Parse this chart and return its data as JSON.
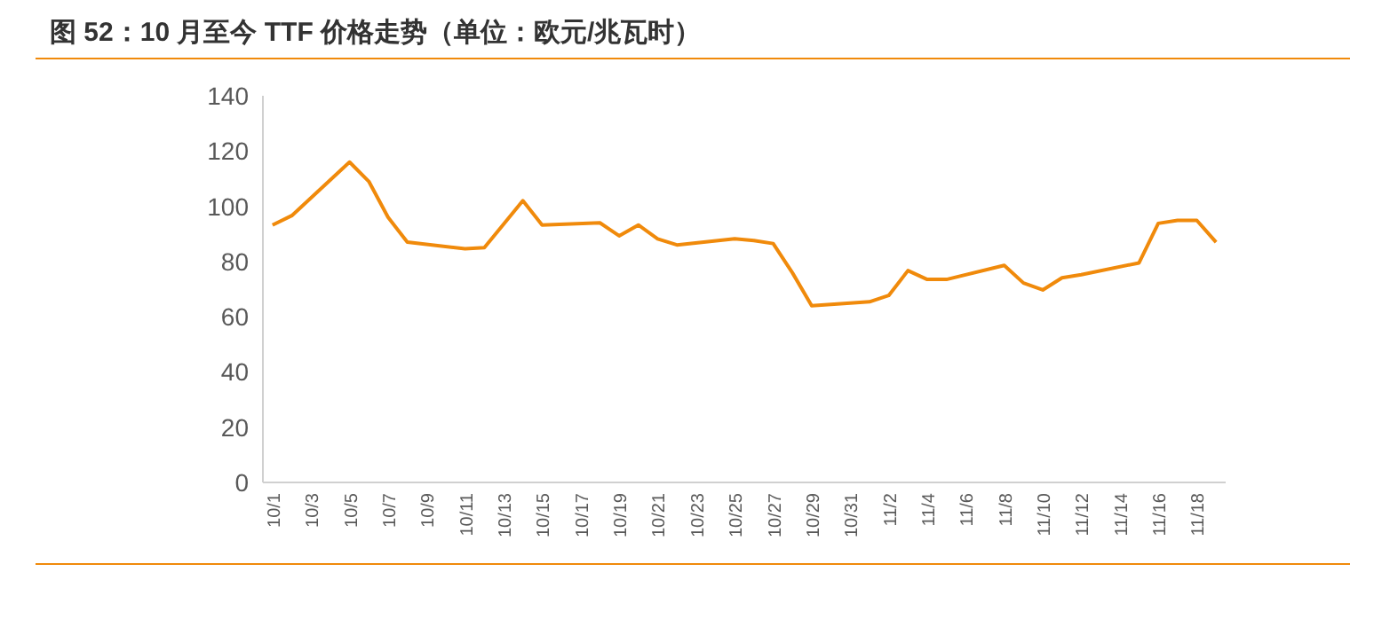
{
  "chart_data": {
    "type": "line",
    "title": "图 52：10 月至今 TTF 价格走势（单位：欧元/兆瓦时）",
    "categories": [
      "10/1",
      null,
      "10/3",
      null,
      "10/5",
      null,
      "10/7",
      null,
      "10/9",
      null,
      "10/11",
      null,
      "10/13",
      null,
      "10/15",
      null,
      "10/17",
      null,
      "10/19",
      null,
      "10/21",
      null,
      "10/23",
      null,
      "10/25",
      null,
      "10/27",
      null,
      "10/29",
      null,
      "10/31",
      null,
      "11/2",
      null,
      "11/4",
      null,
      "11/6",
      null,
      "11/8",
      null,
      "11/10",
      null,
      "11/12",
      null,
      "11/14",
      null,
      "11/16",
      null,
      "11/18",
      null
    ],
    "series": [
      {
        "color": "#f08a0b",
        "values": [
          93.2,
          96.6,
          null,
          null,
          116,
          109,
          96,
          87,
          null,
          null,
          84.6,
          85,
          null,
          102,
          93.2,
          null,
          null,
          94,
          89.3,
          93.2,
          88.2,
          86,
          null,
          null,
          88.2,
          87.6,
          86.5,
          75.9,
          64,
          null,
          null,
          65.4,
          67.7,
          76.7,
          73.5,
          73.5,
          null,
          null,
          78.6,
          72.2,
          69.7,
          74.1,
          75.2,
          null,
          null,
          79.5,
          93.8,
          94.9,
          94.9,
          87
        ]
      }
    ],
    "ylim": [
      0,
      140
    ],
    "yticks": [
      0,
      20,
      40,
      60,
      80,
      100,
      120,
      140
    ],
    "grid": false
  }
}
